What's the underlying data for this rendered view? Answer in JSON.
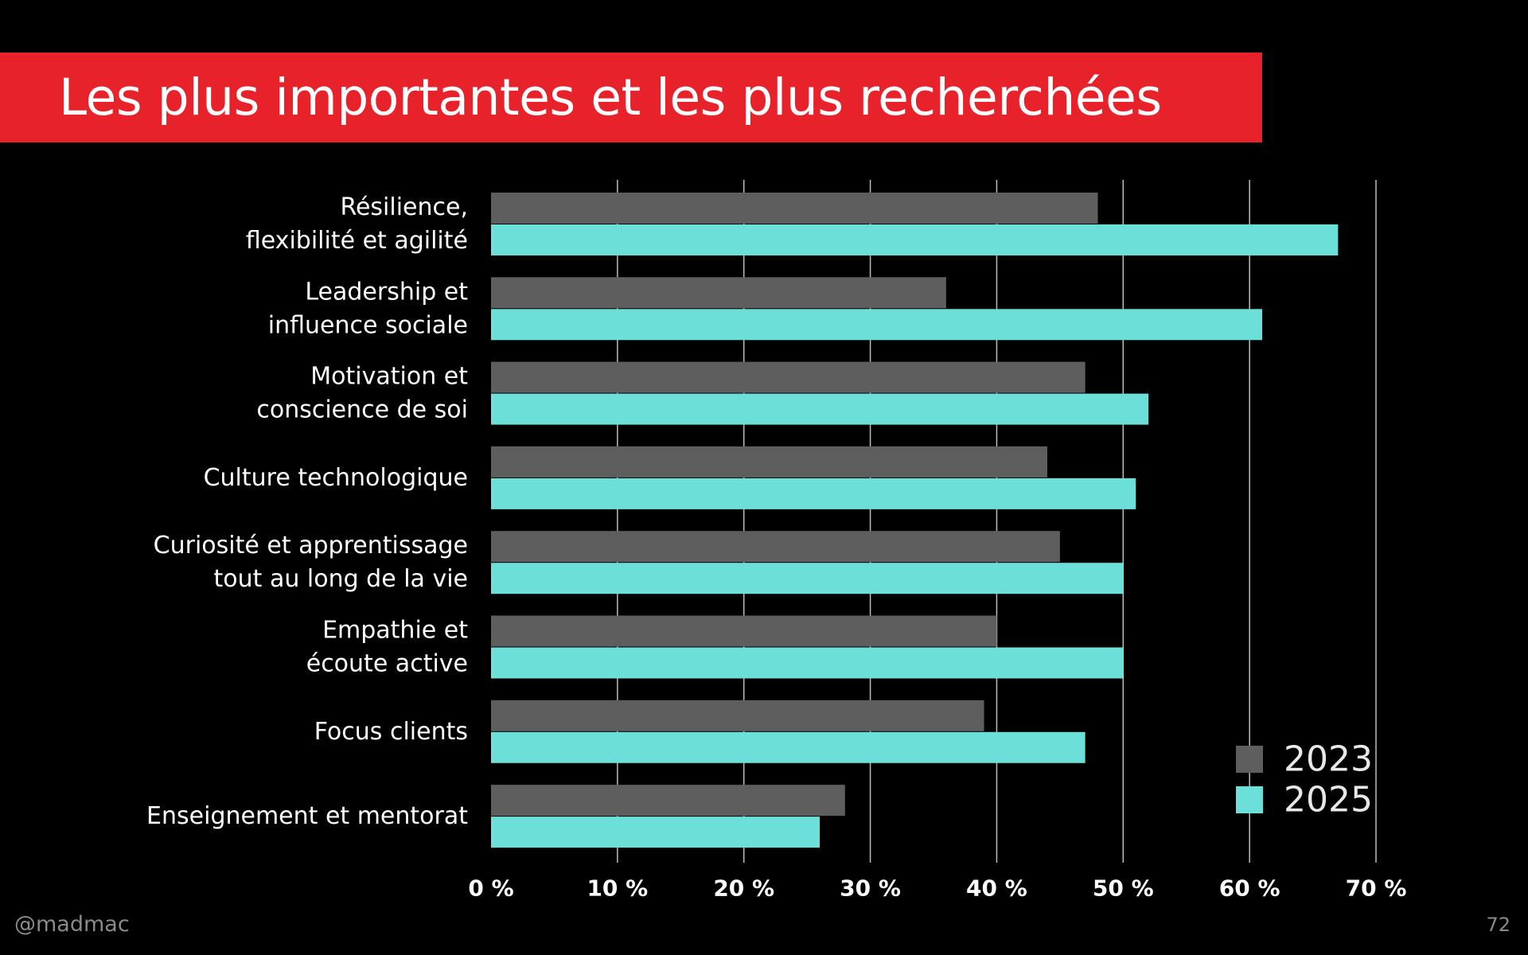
{
  "slide": {
    "title": "Les plus importantes et les plus recherchées",
    "handle": "@madmac",
    "page_number": "72"
  },
  "colors": {
    "background": "#000000",
    "title_bar": "#e8222a",
    "series_2023": "#5e5e5e",
    "series_2025": "#6ddfd9",
    "gridline": "#bdbdbd",
    "text": "#ffffff"
  },
  "chart_data": {
    "type": "bar",
    "orientation": "horizontal",
    "title": "Les plus importantes et les plus recherchées",
    "categories": [
      [
        "Résilience,",
        "flexibilité et agilité"
      ],
      [
        "Leadership et",
        "influence sociale"
      ],
      [
        "Motivation et",
        "conscience de soi"
      ],
      [
        "Culture technologique"
      ],
      [
        "Curiosité et apprentissage",
        "tout au long de la vie"
      ],
      [
        "Empathie et",
        "écoute active"
      ],
      [
        "Focus clients"
      ],
      [
        "Enseignement et mentorat"
      ]
    ],
    "series": [
      {
        "name": "2023",
        "values": [
          48,
          36,
          47,
          44,
          45,
          40,
          39,
          28
        ]
      },
      {
        "name": "2025",
        "values": [
          67,
          61,
          52,
          51,
          50,
          50,
          47,
          26
        ]
      }
    ],
    "xlim": [
      0,
      70
    ],
    "xticks": [
      0,
      10,
      20,
      30,
      40,
      50,
      60,
      70
    ],
    "xtick_labels": [
      "0 %",
      "10 %",
      "20 %",
      "30 %",
      "40 %",
      "50 %",
      "60 %",
      "70 %"
    ],
    "grid": true,
    "legend": {
      "position": "bottom-right",
      "entries": [
        "2023",
        "2025"
      ]
    }
  }
}
